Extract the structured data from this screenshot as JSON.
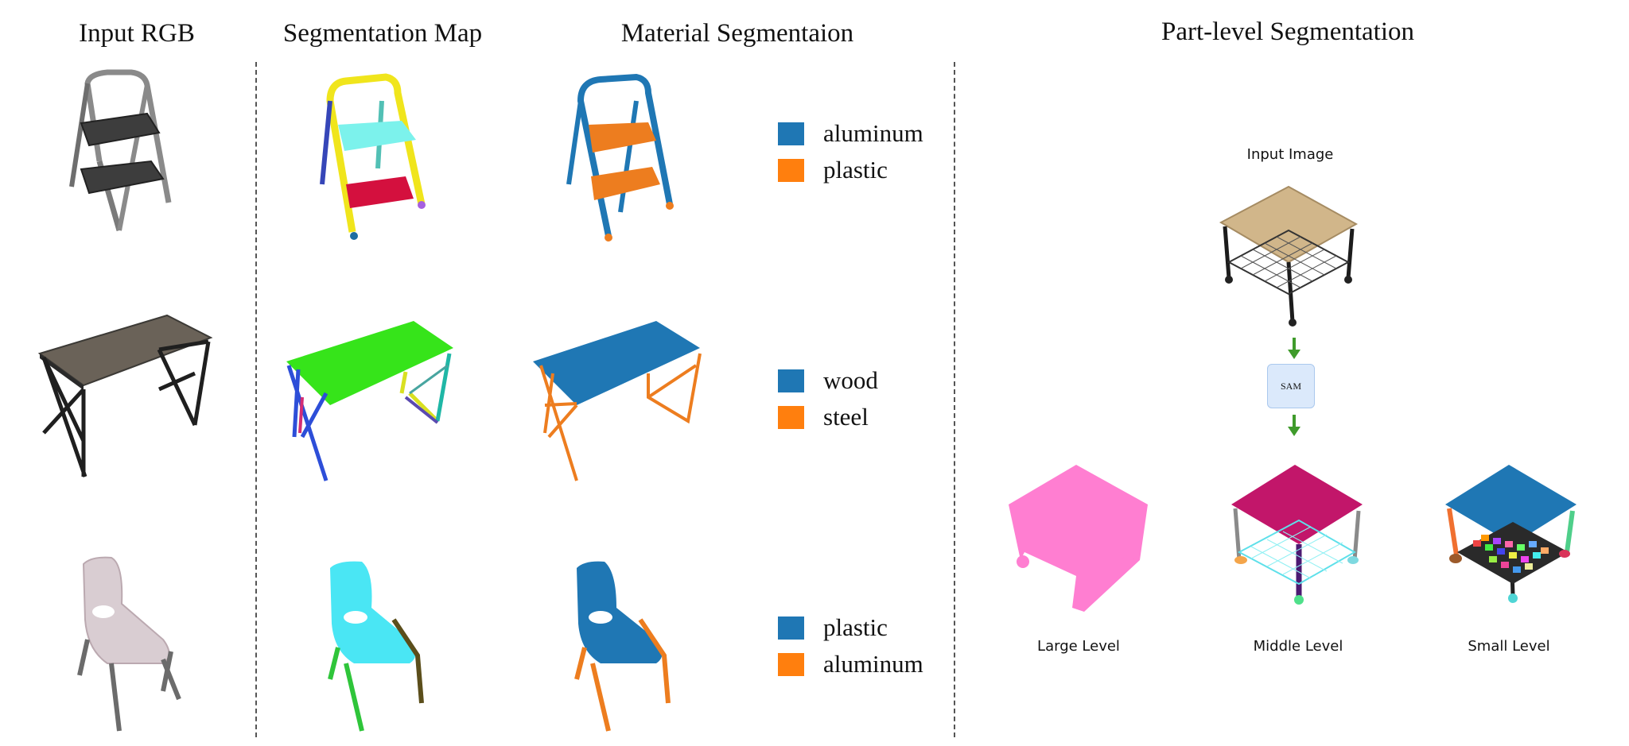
{
  "headers": {
    "input_rgb": "Input RGB",
    "segmentation_map": "Segmentation Map",
    "material_segmentation": "Material Segmentaion",
    "part_level": "Part-level Segmentation"
  },
  "legend_colors": {
    "first": "#1f77b4",
    "second": "#ff7f0e"
  },
  "rows": [
    {
      "object": "step-ladder",
      "materials": [
        "aluminum",
        "plastic"
      ]
    },
    {
      "object": "desk",
      "materials": [
        "wood",
        "steel"
      ]
    },
    {
      "object": "chair",
      "materials": [
        "plastic",
        "aluminum"
      ]
    }
  ],
  "part_level": {
    "input_label": "Input Image",
    "sam_label": "SAM",
    "levels": [
      "Large Level",
      "Middle Level",
      "Small Level"
    ]
  },
  "icons": [
    "arrow-down-icon"
  ]
}
